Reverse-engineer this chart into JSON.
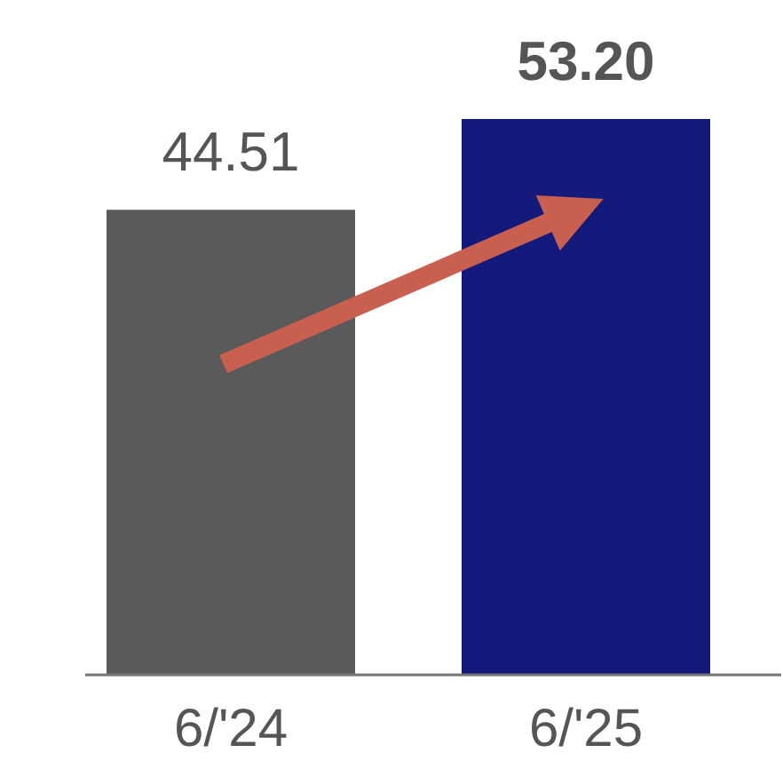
{
  "chart_data": {
    "type": "bar",
    "categories": [
      "6/'24",
      "6/'25"
    ],
    "values": [
      44.51,
      53.2
    ],
    "colors": [
      "#5a5a5a",
      "#141a7c"
    ],
    "value_labels": [
      "44.51",
      "53.20"
    ],
    "tick_labels": "x"
  }
}
